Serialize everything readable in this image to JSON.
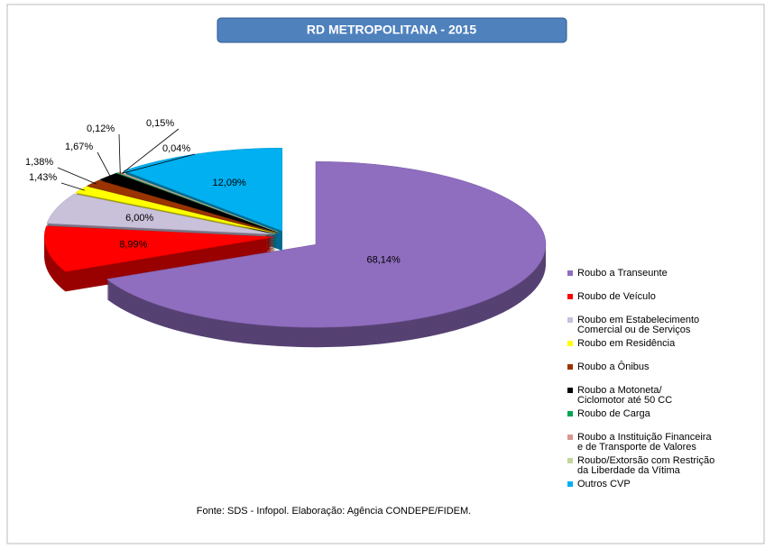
{
  "chart_data": {
    "type": "pie",
    "title": "RD METROPOLITANA - 2015",
    "labels": [
      [
        "Roubo a Transeunte"
      ],
      [
        "Roubo de Veículo"
      ],
      [
        "Roubo em Estabelecimento",
        "Comercial ou de Serviços"
      ],
      [
        "Roubo em Residência"
      ],
      [
        "Roubo a Ônibus"
      ],
      [
        "Roubo a Motoneta/",
        "Ciclomotor até 50 CC"
      ],
      [
        "Roubo de Carga"
      ],
      [
        "Roubo a Instituição Financeira",
        "e de Transporte de Valores"
      ],
      [
        "Roubo/Extorsão com Restrição",
        "da Liberdade da Vítima"
      ],
      [
        "Outros CVP"
      ]
    ],
    "values": [
      68.14,
      8.99,
      6.0,
      1.43,
      1.38,
      1.67,
      0.12,
      0.15,
      0.04,
      12.09
    ],
    "value_labels": [
      "68,14%",
      "8,99%",
      "6,00%",
      "1,43%",
      "1,38%",
      "1,67%",
      "0,12%",
      "0,15%",
      "0,04%",
      "12,09%"
    ],
    "colors": [
      "#8f6dbf",
      "#ff0000",
      "#c9c0da",
      "#ffff00",
      "#993300",
      "#000000",
      "#00a651",
      "#d99694",
      "#c3d69b",
      "#00b0f0"
    ],
    "legend": "right",
    "source": "Fonte: SDS - Infopol.  Elaboração: Agência CONDEPE/FIDEM."
  }
}
